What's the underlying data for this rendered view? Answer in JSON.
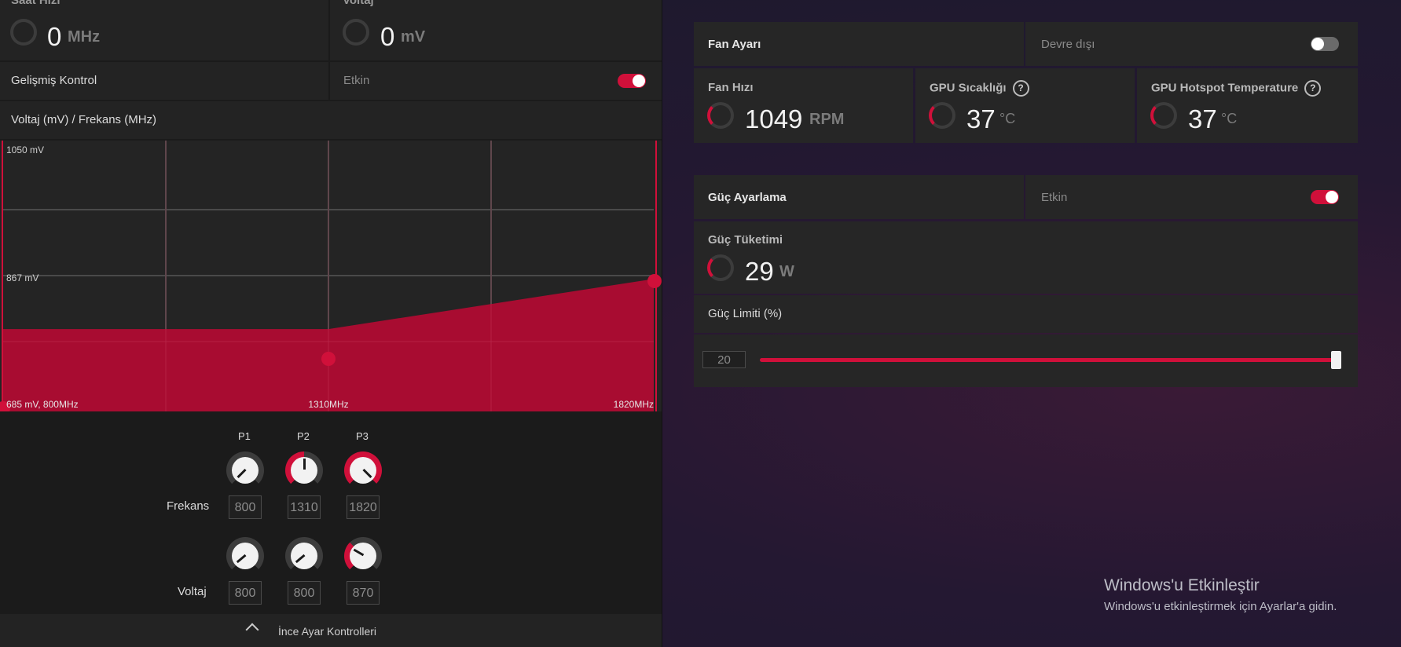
{
  "left": {
    "top_row": {
      "clock": {
        "label": "Saat Hızı",
        "value": "0",
        "unit": "MHz"
      },
      "voltage": {
        "label": "Voltaj",
        "value": "0",
        "unit": "mV"
      }
    },
    "advanced": {
      "label": "Gelişmiş Kontrol",
      "state": "Etkin"
    },
    "curve_title": "Voltaj (mV) / Frekans (MHz)",
    "chart_data": {
      "type": "area",
      "title": "Voltaj (mV) / Frekans (MHz)",
      "x": [
        800,
        1310,
        1820
      ],
      "y": [
        685,
        867,
        1050
      ],
      "x_labels": [
        "685 mV, 800MHz",
        "1310MHz",
        "1820MHz"
      ],
      "y_labels": [
        "1050 mV",
        "867 mV"
      ],
      "curve_points": [
        {
          "mhz": 800,
          "mv": 800
        },
        {
          "mhz": 1310,
          "mv": 800
        },
        {
          "mhz": 1820,
          "mv": 870
        }
      ]
    },
    "pstate_headers": [
      "P1",
      "P2",
      "P3"
    ],
    "freq_label": "Frekans",
    "volt_label": "Voltaj",
    "freq_values": [
      "800",
      "1310",
      "1820"
    ],
    "volt_values": [
      "800",
      "800",
      "870"
    ],
    "footer_label": "İnce Ayar Kontrolleri"
  },
  "fan": {
    "title": "Fan Ayarı",
    "state": "Devre dışı",
    "speed": {
      "label": "Fan Hızı",
      "value": "1049",
      "unit": "RPM"
    },
    "gpu_temp": {
      "label": "GPU Sıcaklığı",
      "value": "37",
      "unit": "°C"
    },
    "hotspot": {
      "label": "GPU Hotspot Temperature",
      "value": "37",
      "unit": "°C"
    }
  },
  "power": {
    "title": "Güç Ayarlama",
    "state": "Etkin",
    "consumption": {
      "label": "Güç Tüketimi",
      "value": "29",
      "unit": "W"
    },
    "limit_label": "Güç Limiti (%)",
    "limit_value": "20",
    "limit_fraction": 1.0
  },
  "watermark": {
    "title": "Windows'u Etkinleştir",
    "subtitle": "Windows'u etkinleştirmek için Ayarlar'a gidin."
  },
  "colors": {
    "accent": "#d0103a",
    "background": "#1b1b1b"
  }
}
